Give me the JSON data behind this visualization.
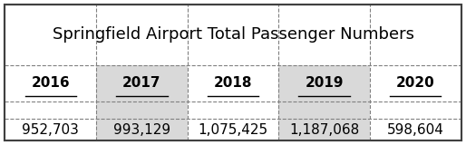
{
  "title": "Springfield Airport Total Passenger Numbers",
  "years": [
    "2016",
    "2017",
    "2018",
    "2019",
    "2020"
  ],
  "values": [
    "952,703",
    "993,129",
    "1,075,425",
    "1,187,068",
    "598,604"
  ],
  "shaded_cols": [
    1,
    3
  ],
  "shaded_color": "#d9d9d9",
  "white_color": "#ffffff",
  "border_color": "#808080",
  "text_color": "#000000",
  "title_fontsize": 13,
  "cell_fontsize": 11,
  "outer_border_color": "#404040",
  "outer_border_lw": 1.5,
  "inner_border_lw": 0.8
}
